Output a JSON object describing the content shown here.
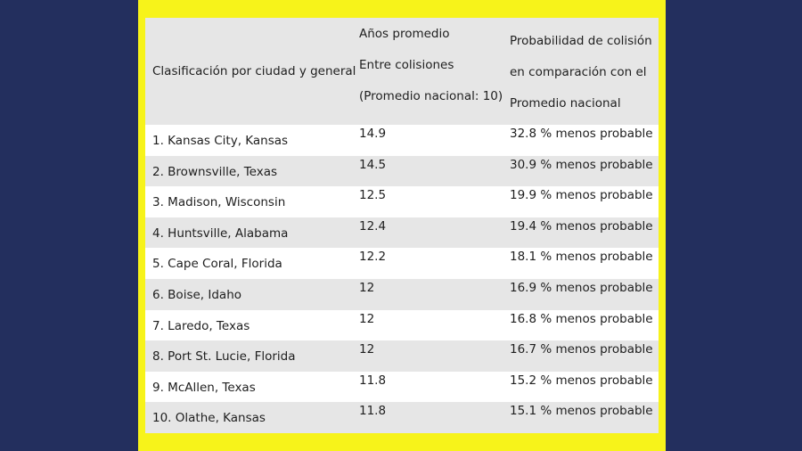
{
  "table": {
    "header": {
      "col1": "Clasificación por ciudad y general",
      "col2_lines": [
        "Años promedio",
        "Entre colisiones",
        "(Promedio nacional: 10)"
      ],
      "col3_lines": [
        "Probabilidad de colisión",
        "en comparación con el",
        "Promedio nacional"
      ]
    },
    "rows": [
      {
        "city": "1. Kansas City, Kansas",
        "years": "14.9",
        "probability": "32.8 % menos probable"
      },
      {
        "city": "2. Brownsville, Texas",
        "years": "14.5",
        "probability": "30.9 % menos probable"
      },
      {
        "city": "3. Madison, Wisconsin",
        "years": "12.5",
        "probability": "19.9 % menos probable"
      },
      {
        "city": "4. Huntsville, Alabama",
        "years": "12.4",
        "probability": "19.4 % menos probable"
      },
      {
        "city": "5. Cape Coral, Florida",
        "years": "12.2",
        "probability": "18.1 % menos probable"
      },
      {
        "city": "6. Boise, Idaho",
        "years": "12",
        "probability": "16.9 % menos probable"
      },
      {
        "city": "7. Laredo, Texas",
        "years": "12",
        "probability": "16.8 % menos probable"
      },
      {
        "city": "8. Port St. Lucie, Florida",
        "years": "12",
        "probability": "16.7 % menos probable"
      },
      {
        "city": "9. McAllen, Texas",
        "years": "11.8",
        "probability": "15.2 % menos probable"
      },
      {
        "city": "10. Olathe, Kansas",
        "years": "11.8",
        "probability": "15.1 % menos probable"
      }
    ]
  }
}
